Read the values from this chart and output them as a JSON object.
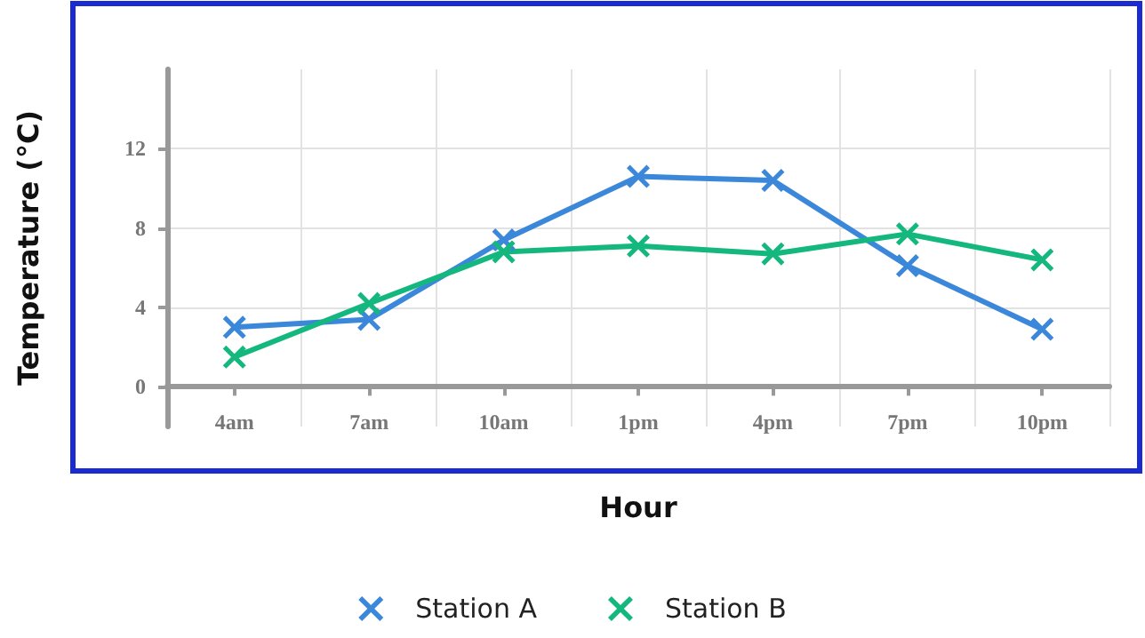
{
  "chart_data": {
    "type": "line",
    "xlabel": "Hour",
    "ylabel": "Temperature (°C)",
    "categories": [
      "4am",
      "7am",
      "10am",
      "1pm",
      "4pm",
      "7pm",
      "10pm"
    ],
    "series": [
      {
        "name": "Station A",
        "color": "#3b87d9",
        "values": [
          3.0,
          3.4,
          7.4,
          10.6,
          10.4,
          6.1,
          2.9
        ]
      },
      {
        "name": "Station B",
        "color": "#14b87f",
        "values": [
          1.5,
          4.2,
          6.8,
          7.1,
          6.7,
          7.7,
          6.4
        ]
      }
    ],
    "ylim": [
      -2,
      16
    ],
    "yticks": [
      0,
      4,
      8,
      12
    ],
    "grid": true,
    "legend": "bottom",
    "marker": "cross",
    "line_style": "solid"
  }
}
